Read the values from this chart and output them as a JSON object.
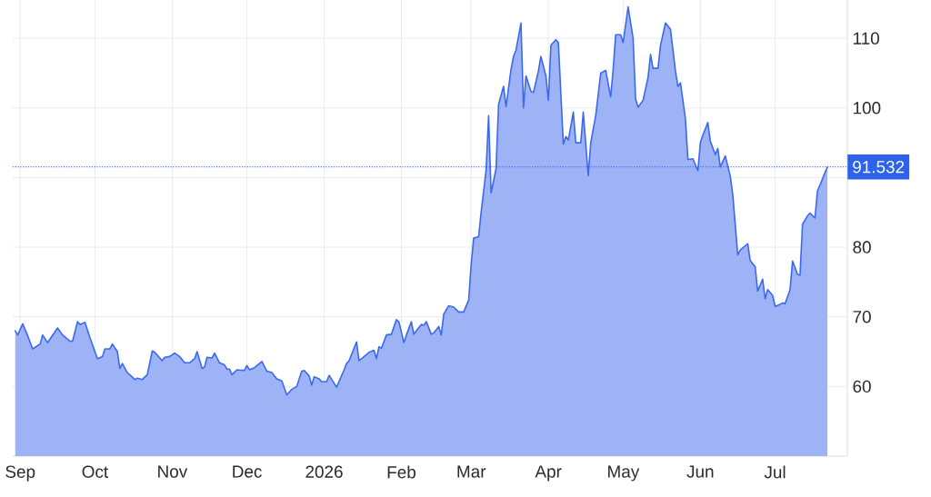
{
  "chart_data": {
    "type": "area",
    "color": "#3b68ee",
    "x": [
      "2025-08-30",
      "2025-08-31",
      "2025-09-02",
      "2025-09-04",
      "2025-09-06",
      "2025-09-09",
      "2025-09-10",
      "2025-09-12",
      "2025-09-16",
      "2025-09-18",
      "2025-09-21",
      "2025-09-22",
      "2025-09-24",
      "2025-09-25",
      "2025-09-27",
      "2025-09-29",
      "2025-10-02",
      "2025-10-04",
      "2025-10-05",
      "2025-10-07",
      "2025-10-08",
      "2025-10-10",
      "2025-10-11",
      "2025-10-12",
      "2025-10-14",
      "2025-10-17",
      "2025-10-18",
      "2025-10-20",
      "2025-10-22",
      "2025-10-24",
      "2025-10-25",
      "2025-10-28",
      "2025-10-29",
      "2025-10-31",
      "2025-11-02",
      "2025-11-04",
      "2025-11-06",
      "2025-11-08",
      "2025-11-10",
      "2025-11-11",
      "2025-11-13",
      "2025-11-14",
      "2025-11-15",
      "2025-11-17",
      "2025-11-18",
      "2025-11-20",
      "2025-11-22",
      "2025-11-23",
      "2025-11-24",
      "2025-11-25",
      "2025-11-27",
      "2025-11-30",
      "2025-12-01",
      "2025-12-02",
      "2025-12-04",
      "2025-12-07",
      "2025-12-09",
      "2025-12-11",
      "2025-12-13",
      "2025-12-15",
      "2025-12-17",
      "2025-12-19",
      "2025-12-21",
      "2025-12-23",
      "2025-12-24",
      "2025-12-26",
      "2025-12-27",
      "2025-12-28",
      "2025-12-30",
      "2025-12-31",
      "2026-01-02",
      "2026-01-03",
      "2026-01-06",
      "2026-01-09",
      "2026-01-10",
      "2026-01-11",
      "2026-01-14",
      "2026-01-15",
      "2026-01-17",
      "2026-01-19",
      "2026-01-21",
      "2026-01-22",
      "2026-01-23",
      "2026-01-24",
      "2026-01-26",
      "2026-01-28",
      "2026-01-30",
      "2026-01-31",
      "2026-02-02",
      "2026-02-03",
      "2026-02-05",
      "2026-02-06",
      "2026-02-07",
      "2026-02-09",
      "2026-02-10",
      "2026-02-11",
      "2026-02-13",
      "2026-02-14",
      "2026-02-16",
      "2026-02-17",
      "2026-02-18",
      "2026-02-20",
      "2026-02-22",
      "2026-02-24",
      "2026-02-26",
      "2026-02-28",
      "2026-03-01",
      "2026-03-02",
      "2026-03-04",
      "2026-03-05",
      "2026-03-07",
      "2026-03-08",
      "2026-03-09",
      "2026-03-11",
      "2026-03-12",
      "2026-03-14",
      "2026-03-15",
      "2026-03-17",
      "2026-03-18",
      "2026-03-19",
      "2026-03-21",
      "2026-03-22",
      "2026-03-23",
      "2026-03-25",
      "2026-03-26",
      "2026-03-28",
      "2026-03-29",
      "2026-03-31",
      "2026-04-01",
      "2026-04-02",
      "2026-04-04",
      "2026-04-05",
      "2026-04-07",
      "2026-04-08",
      "2026-04-09",
      "2026-04-11",
      "2026-04-12",
      "2026-04-14",
      "2026-04-15",
      "2026-04-17",
      "2026-04-18",
      "2026-04-20",
      "2026-04-22",
      "2026-04-24",
      "2026-04-26",
      "2026-04-27",
      "2026-04-28",
      "2026-04-30",
      "2026-05-01",
      "2026-05-03",
      "2026-05-05",
      "2026-05-06",
      "2026-05-07",
      "2026-05-09",
      "2026-05-11",
      "2026-05-12",
      "2026-05-13",
      "2026-05-15",
      "2026-05-16",
      "2026-05-18",
      "2026-05-20",
      "2026-05-22",
      "2026-05-23",
      "2026-05-24",
      "2026-05-26",
      "2026-05-27",
      "2026-05-29",
      "2026-05-31",
      "2026-06-01",
      "2026-06-02",
      "2026-06-04",
      "2026-06-05",
      "2026-06-07",
      "2026-06-08",
      "2026-06-09",
      "2026-06-11",
      "2026-06-13",
      "2026-06-14",
      "2026-06-16",
      "2026-06-17",
      "2026-06-20",
      "2026-06-21",
      "2026-06-23",
      "2026-06-24",
      "2026-06-26",
      "2026-06-27",
      "2026-06-28",
      "2026-06-30",
      "2026-07-01",
      "2026-07-03",
      "2026-07-04",
      "2026-07-05",
      "2026-07-07",
      "2026-07-08",
      "2026-07-10",
      "2026-07-11",
      "2026-07-12",
      "2026-07-14",
      "2026-07-15",
      "2026-07-17",
      "2026-07-18",
      "2026-07-19",
      "2026-07-21",
      "2026-07-22"
    ],
    "values": [
      68.0,
      67.4,
      69.0,
      67.3,
      65.4,
      66.1,
      67.4,
      66.3,
      68.4,
      67.4,
      66.5,
      66.5,
      69.3,
      68.9,
      69.2,
      67.0,
      64.0,
      64.3,
      65.4,
      65.4,
      66.1,
      65.0,
      62.6,
      63.3,
      62.0,
      61.0,
      61.2,
      61.0,
      61.7,
      65.1,
      64.9,
      63.7,
      64.2,
      64.3,
      64.8,
      64.3,
      63.4,
      63.4,
      64.0,
      65.0,
      62.6,
      62.8,
      64.2,
      64.1,
      64.8,
      63.4,
      63.1,
      62.5,
      62.5,
      61.7,
      62.4,
      62.3,
      63.0,
      62.4,
      62.7,
      63.6,
      62.2,
      62.0,
      61.1,
      60.8,
      58.8,
      59.6,
      60.0,
      62.2,
      62.3,
      61.5,
      60.2,
      61.4,
      61.1,
      60.7,
      60.7,
      61.6,
      59.9,
      62.4,
      63.3,
      63.7,
      66.4,
      63.7,
      64.3,
      64.9,
      65.2,
      64.0,
      65.7,
      65.5,
      67.4,
      67.5,
      69.6,
      69.3,
      66.3,
      67.4,
      69.3,
      67.5,
      68.0,
      68.9,
      68.8,
      69.3,
      67.5,
      67.7,
      68.6,
      67.4,
      70.4,
      71.6,
      71.4,
      70.7,
      70.7,
      72.4,
      77.5,
      81.3,
      81.5,
      85.0,
      91.1,
      98.9,
      87.8,
      91.3,
      100.5,
      103.1,
      100.2,
      105.5,
      107.4,
      108.3,
      112.2,
      100.0,
      104.6,
      102.4,
      102.2,
      105.3,
      107.4,
      104.6,
      101.1,
      109.0,
      109.8,
      109.4,
      94.8,
      95.9,
      95.4,
      99.4,
      95.0,
      95.0,
      99.4,
      90.3,
      95.0,
      98.9,
      105.0,
      105.4,
      101.6,
      105.5,
      110.5,
      110.5,
      109.4,
      114.5,
      110.0,
      101.3,
      100.1,
      101.1,
      104.4,
      107.7,
      105.7,
      105.7,
      109.0,
      112.2,
      111.3,
      105.3,
      103.1,
      103.6,
      98.5,
      92.6,
      92.7,
      91.0,
      95.0,
      96.1,
      97.9,
      95.2,
      93.3,
      94.2,
      91.5,
      93.1,
      90.2,
      87.6,
      78.9,
      79.6,
      80.5,
      78.1,
      77.2,
      73.7,
      75.4,
      72.6,
      73.9,
      73.1,
      71.5,
      71.8,
      72.0,
      71.9,
      73.9,
      78.0,
      76.1,
      76.0,
      83.3,
      84.5,
      84.9,
      84.2,
      88.1,
      88.9,
      90.7,
      91.5
    ],
    "xlim": [
      "2025-08-29",
      "2026-07-30"
    ],
    "ylim": [
      50,
      115.5
    ],
    "xticks": [
      {
        "value": "2025-09-01",
        "label": "Sep"
      },
      {
        "value": "2025-10-01",
        "label": "Oct"
      },
      {
        "value": "2025-11-01",
        "label": "Nov"
      },
      {
        "value": "2025-12-01",
        "label": "Dec"
      },
      {
        "value": "2026-01-01",
        "label": "2026"
      },
      {
        "value": "2026-02-01",
        "label": "Feb"
      },
      {
        "value": "2026-03-01",
        "label": "Mar"
      },
      {
        "value": "2026-04-01",
        "label": "Apr"
      },
      {
        "value": "2026-05-01",
        "label": "May"
      },
      {
        "value": "2026-06-01",
        "label": "Jun"
      },
      {
        "value": "2026-07-01",
        "label": "Jul"
      }
    ],
    "yticks": [
      60,
      70,
      80,
      {
        "value": 90,
        "label": null
      },
      100,
      110
    ],
    "grid": true,
    "ref_lines": [
      {
        "axis": "y",
        "value": 91.532,
        "label": "91.532",
        "color": "#2f62eb",
        "line_style": "dotted"
      }
    ]
  }
}
